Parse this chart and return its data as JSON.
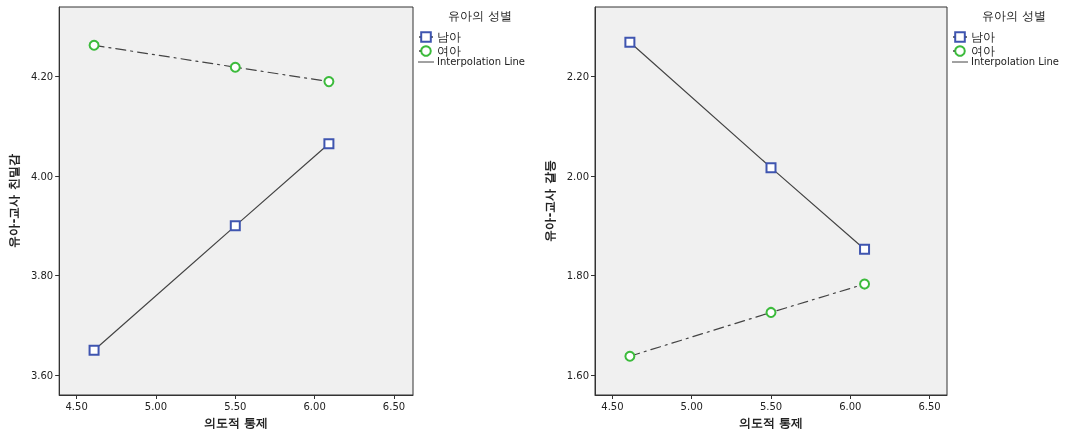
{
  "chart_data": [
    {
      "type": "line",
      "xlabel": "의도적 통제",
      "ylabel": "유아-교사 친밀감",
      "legend_title": "유아의 성별",
      "legend": "right",
      "grid": false,
      "annotations": [
        "Interpolation Line"
      ],
      "xlim": [
        4.39,
        6.62
      ],
      "xticks": [
        {
          "value": 4.5,
          "label": "4.50"
        },
        {
          "value": 5,
          "label": "5.00"
        },
        {
          "value": 5.5,
          "label": "5.50"
        },
        {
          "value": 6,
          "label": "6.00"
        },
        {
          "value": 6.5,
          "label": "6.50"
        }
      ],
      "ylim": [
        3.56,
        4.34
      ],
      "yticks": [
        {
          "value": 3.6,
          "label": "3.60"
        },
        {
          "value": 3.8,
          "label": "3.80"
        },
        {
          "value": 4,
          "label": "4.00"
        },
        {
          "value": 4.2,
          "label": "4.20"
        }
      ],
      "x": [
        4.61,
        5.5,
        6.09
      ],
      "series": [
        {
          "name": "남아",
          "color": "#3f55b0",
          "marker": "square",
          "line_style": "solid",
          "values": [
            3.65,
            3.9,
            4.065
          ]
        },
        {
          "name": "여아",
          "color": "#3cbb3c",
          "marker": "circle",
          "line_style": "dashed",
          "values": [
            4.263,
            4.219,
            4.19
          ]
        }
      ]
    },
    {
      "type": "line",
      "xlabel": "의도적 통제",
      "ylabel": "유아-교사 갈등",
      "legend_title": "유아의 성별",
      "legend": "right",
      "grid": false,
      "annotations": [
        "Interpolation Line"
      ],
      "xlim": [
        4.39,
        6.61
      ],
      "xticks": [
        {
          "value": 4.5,
          "label": "4.50"
        },
        {
          "value": 5,
          "label": "5.00"
        },
        {
          "value": 5.5,
          "label": "5.50"
        },
        {
          "value": 6,
          "label": "6.00"
        },
        {
          "value": 6.5,
          "label": "6.50"
        }
      ],
      "ylim": [
        1.56,
        2.34
      ],
      "yticks": [
        {
          "value": 1.6,
          "label": "1.60"
        },
        {
          "value": 1.8,
          "label": "1.80"
        },
        {
          "value": 2,
          "label": "2.00"
        },
        {
          "value": 2.2,
          "label": "2.20"
        }
      ],
      "x": [
        4.61,
        5.5,
        6.09
      ],
      "series": [
        {
          "name": "남아",
          "color": "#3f55b0",
          "marker": "square",
          "line_style": "solid",
          "values": [
            2.269,
            2.017,
            1.853
          ]
        },
        {
          "name": "여아",
          "color": "#3cbb3c",
          "marker": "circle",
          "line_style": "dashed",
          "values": [
            1.638,
            1.726,
            1.783
          ]
        }
      ]
    }
  ]
}
